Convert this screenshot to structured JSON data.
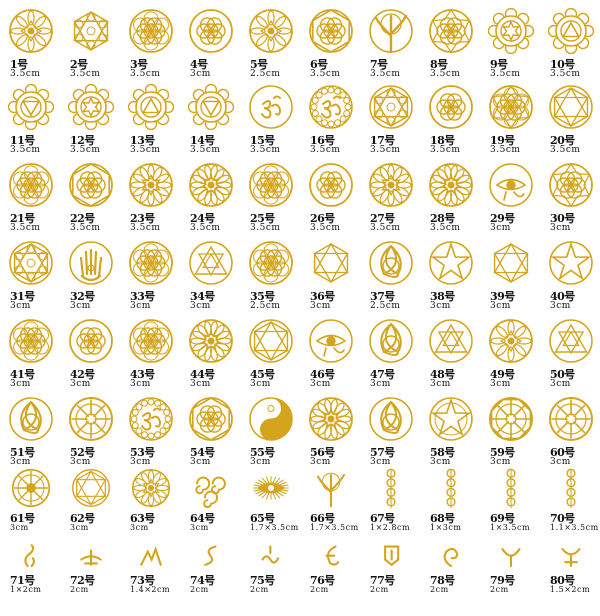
{
  "colors": {
    "gold": "#d4a51c",
    "gold_dark": "#b8860b",
    "background": "#ffffff",
    "text": "#111111"
  },
  "suffix": "号",
  "rows": [
    [
      {
        "n": "1",
        "size": "3.5cm",
        "icon": "cho-ku-rei-spiral"
      },
      {
        "n": "2",
        "size": "3.5cm",
        "icon": "metatron-hexagon"
      },
      {
        "n": "3",
        "size": "3.5cm",
        "icon": "flower-of-life"
      },
      {
        "n": "4",
        "size": "3cm",
        "icon": "flower-of-life-circle"
      },
      {
        "n": "5",
        "size": "2.5cm",
        "icon": "star-mandala"
      },
      {
        "n": "6",
        "size": "3.5cm",
        "icon": "flower-hexagon"
      },
      {
        "n": "7",
        "size": "3.5cm",
        "icon": "tree-of-life"
      },
      {
        "n": "8",
        "size": "3.5cm",
        "icon": "flower-star"
      },
      {
        "n": "9",
        "size": "3.5cm",
        "icon": "heart-chakra"
      },
      {
        "n": "10",
        "size": "3.5cm",
        "icon": "root-chakra"
      }
    ],
    [
      {
        "n": "11",
        "size": "3.5cm",
        "icon": "sacral-chakra"
      },
      {
        "n": "12",
        "size": "3.5cm",
        "icon": "solar-plexus-chakra"
      },
      {
        "n": "13",
        "size": "3.5cm",
        "icon": "throat-chakra"
      },
      {
        "n": "14",
        "size": "3.5cm",
        "icon": "third-eye-chakra"
      },
      {
        "n": "15",
        "size": "3.5cm",
        "icon": "om-lotus"
      },
      {
        "n": "16",
        "size": "3.5cm",
        "icon": "om-crown"
      },
      {
        "n": "17",
        "size": "3.5cm",
        "icon": "metatron-cube"
      },
      {
        "n": "18",
        "size": "3.5cm",
        "icon": "yin-yang-flower"
      },
      {
        "n": "19",
        "size": "3.5cm",
        "icon": "star-of-david-flower"
      },
      {
        "n": "20",
        "size": "3.5cm",
        "icon": "hexagram-mandala"
      }
    ],
    [
      {
        "n": "21",
        "size": "3.5cm",
        "icon": "flower-of-life-large"
      },
      {
        "n": "22",
        "size": "3.5cm",
        "icon": "seed-hexagon"
      },
      {
        "n": "23",
        "size": "3.5cm",
        "icon": "swirl-star"
      },
      {
        "n": "24",
        "size": "3.5cm",
        "icon": "lotus-mandala"
      },
      {
        "n": "25",
        "size": "3.5cm",
        "icon": "sun-flower"
      },
      {
        "n": "26",
        "size": "3.5cm",
        "icon": "lotus-petals"
      },
      {
        "n": "27",
        "size": "3.5cm",
        "icon": "buddha-lotus"
      },
      {
        "n": "28",
        "size": "3.5cm",
        "icon": "tree-of-life-round"
      },
      {
        "n": "29",
        "size": "3cm",
        "icon": "eye-of-horus"
      },
      {
        "n": "30",
        "size": "3cm",
        "icon": "starburst-flower"
      }
    ],
    [
      {
        "n": "31",
        "size": "3cm",
        "icon": "metatron-circle"
      },
      {
        "n": "32",
        "size": "3cm",
        "icon": "hamsa-hand"
      },
      {
        "n": "33",
        "size": "3cm",
        "icon": "flower-of-life-small"
      },
      {
        "n": "34",
        "size": "3cm",
        "icon": "sri-yantra"
      },
      {
        "n": "35",
        "size": "2.5cm",
        "icon": "flower-circle"
      },
      {
        "n": "36",
        "size": "3cm",
        "icon": "star-of-david"
      },
      {
        "n": "37",
        "size": "2.5cm",
        "icon": "triquetra-circle"
      },
      {
        "n": "38",
        "size": "3cm",
        "icon": "pentagram-circle"
      },
      {
        "n": "39",
        "size": "3cm",
        "icon": "merkaba-star"
      },
      {
        "n": "40",
        "size": "3cm",
        "icon": "sigil-star"
      }
    ],
    [
      {
        "n": "41",
        "size": "3cm",
        "icon": "seed-of-life"
      },
      {
        "n": "42",
        "size": "3cm",
        "icon": "torus-circles"
      },
      {
        "n": "43",
        "size": "3cm",
        "icon": "flower-small"
      },
      {
        "n": "44",
        "size": "3cm",
        "icon": "star-square"
      },
      {
        "n": "45",
        "size": "3cm",
        "icon": "hexagram-lotus"
      },
      {
        "n": "46",
        "size": "3cm",
        "icon": "all-seeing-eye"
      },
      {
        "n": "47",
        "size": "3cm",
        "icon": "triskele-circle"
      },
      {
        "n": "48",
        "size": "3cm",
        "icon": "lotus-triangle"
      },
      {
        "n": "49",
        "size": "3cm",
        "icon": "vesica-circles"
      },
      {
        "n": "50",
        "size": "3cm",
        "icon": "triangle-circle"
      }
    ],
    [
      {
        "n": "51",
        "size": "3cm",
        "icon": "triquetra-knot"
      },
      {
        "n": "52",
        "size": "3cm",
        "icon": "vegvisir"
      },
      {
        "n": "53",
        "size": "3cm",
        "icon": "om-mandala"
      },
      {
        "n": "54",
        "size": "3cm",
        "icon": "flower-hexagon-small"
      },
      {
        "n": "55",
        "size": "3cm",
        "icon": "yin-yang"
      },
      {
        "n": "56",
        "size": "3cm",
        "icon": "lotus-circle"
      },
      {
        "n": "57",
        "size": "3cm",
        "icon": "trinity-lotus"
      },
      {
        "n": "58",
        "size": "3cm",
        "icon": "pentagram"
      },
      {
        "n": "59",
        "size": "3cm",
        "icon": "bagua"
      },
      {
        "n": "60",
        "size": "3cm",
        "icon": "runic-circle"
      }
    ],
    [
      {
        "n": "61",
        "size": "3cm",
        "icon": "ornate-disc"
      },
      {
        "n": "62",
        "size": "3cm",
        "icon": "hexagram-knot"
      },
      {
        "n": "63",
        "size": "3cm",
        "icon": "lotus-script"
      },
      {
        "n": "64",
        "size": "3cm",
        "icon": "triple-spiral"
      },
      {
        "n": "65",
        "size": "1.7×3.5cm",
        "icon": "radiant-eye"
      },
      {
        "n": "66",
        "size": "1.7×3.5cm",
        "icon": "tree-small"
      },
      {
        "n": "67",
        "size": "1×2.8cm",
        "icon": "chakra-column"
      },
      {
        "n": "68",
        "size": "1×3cm",
        "icon": "chakra-column-2"
      },
      {
        "n": "69",
        "size": "1×3.5cm",
        "icon": "chakra-column-3"
      },
      {
        "n": "70",
        "size": "1.1×3.5cm",
        "icon": "chakra-column-4"
      }
    ],
    [
      {
        "n": "71",
        "size": "1×2cm",
        "icon": "cursive-glyph"
      },
      {
        "n": "72",
        "size": "2cm",
        "icon": "crescent-glyph"
      },
      {
        "n": "73",
        "size": "1.4×2cm",
        "icon": "mountain-glyph"
      },
      {
        "n": "74",
        "size": "2cm",
        "icon": "serpent-glyph"
      },
      {
        "n": "75",
        "size": "2cm",
        "icon": "wave-glyph"
      },
      {
        "n": "76",
        "size": "2cm",
        "icon": "moon-glyph"
      },
      {
        "n": "77",
        "size": "2cm",
        "icon": "banner-glyph"
      },
      {
        "n": "78",
        "size": "2cm",
        "icon": "spiral-glyph"
      },
      {
        "n": "79",
        "size": "2cm",
        "icon": "horn-glyph"
      },
      {
        "n": "80",
        "size": "1.5×2cm",
        "icon": "horned-moon-glyph"
      }
    ]
  ]
}
